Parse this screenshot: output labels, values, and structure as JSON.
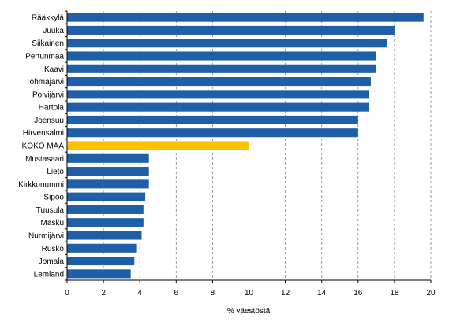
{
  "chart_data": {
    "type": "bar",
    "orientation": "horizontal",
    "title": "",
    "xlabel": "% väestöstä",
    "ylabel": "",
    "xlim": [
      0,
      20
    ],
    "xticks": [
      "0",
      "2",
      "4",
      "6",
      "8",
      "10",
      "12",
      "14",
      "16",
      "18",
      "20"
    ],
    "grid": "vertical dashed",
    "legend": "none",
    "categories": [
      "Rääkkylä",
      "Juuka",
      "Siikainen",
      "Pertunmaa",
      "Kaavi",
      "Tohmajärvi",
      "Polvijärvi",
      "Hartola",
      "Joensuu",
      "Hirvensalmi",
      "KOKO MAA",
      "Mustasaari",
      "Lieto",
      "Kirkkonummi",
      "Sipoo",
      "Tuusula",
      "Masku",
      "Nurmijärvi",
      "Rusko",
      "Jomala",
      "Lemland"
    ],
    "values": [
      19.6,
      18.0,
      17.6,
      17.0,
      17.0,
      16.7,
      16.6,
      16.6,
      16.0,
      16.0,
      10.0,
      4.5,
      4.5,
      4.5,
      4.3,
      4.2,
      4.2,
      4.1,
      3.8,
      3.7,
      3.5
    ],
    "highlight_category": "KOKO MAA",
    "colors": {
      "bar": "#1f5fa8",
      "highlight": "#ffc000",
      "grid": "#808080",
      "axis": "#000000"
    }
  }
}
